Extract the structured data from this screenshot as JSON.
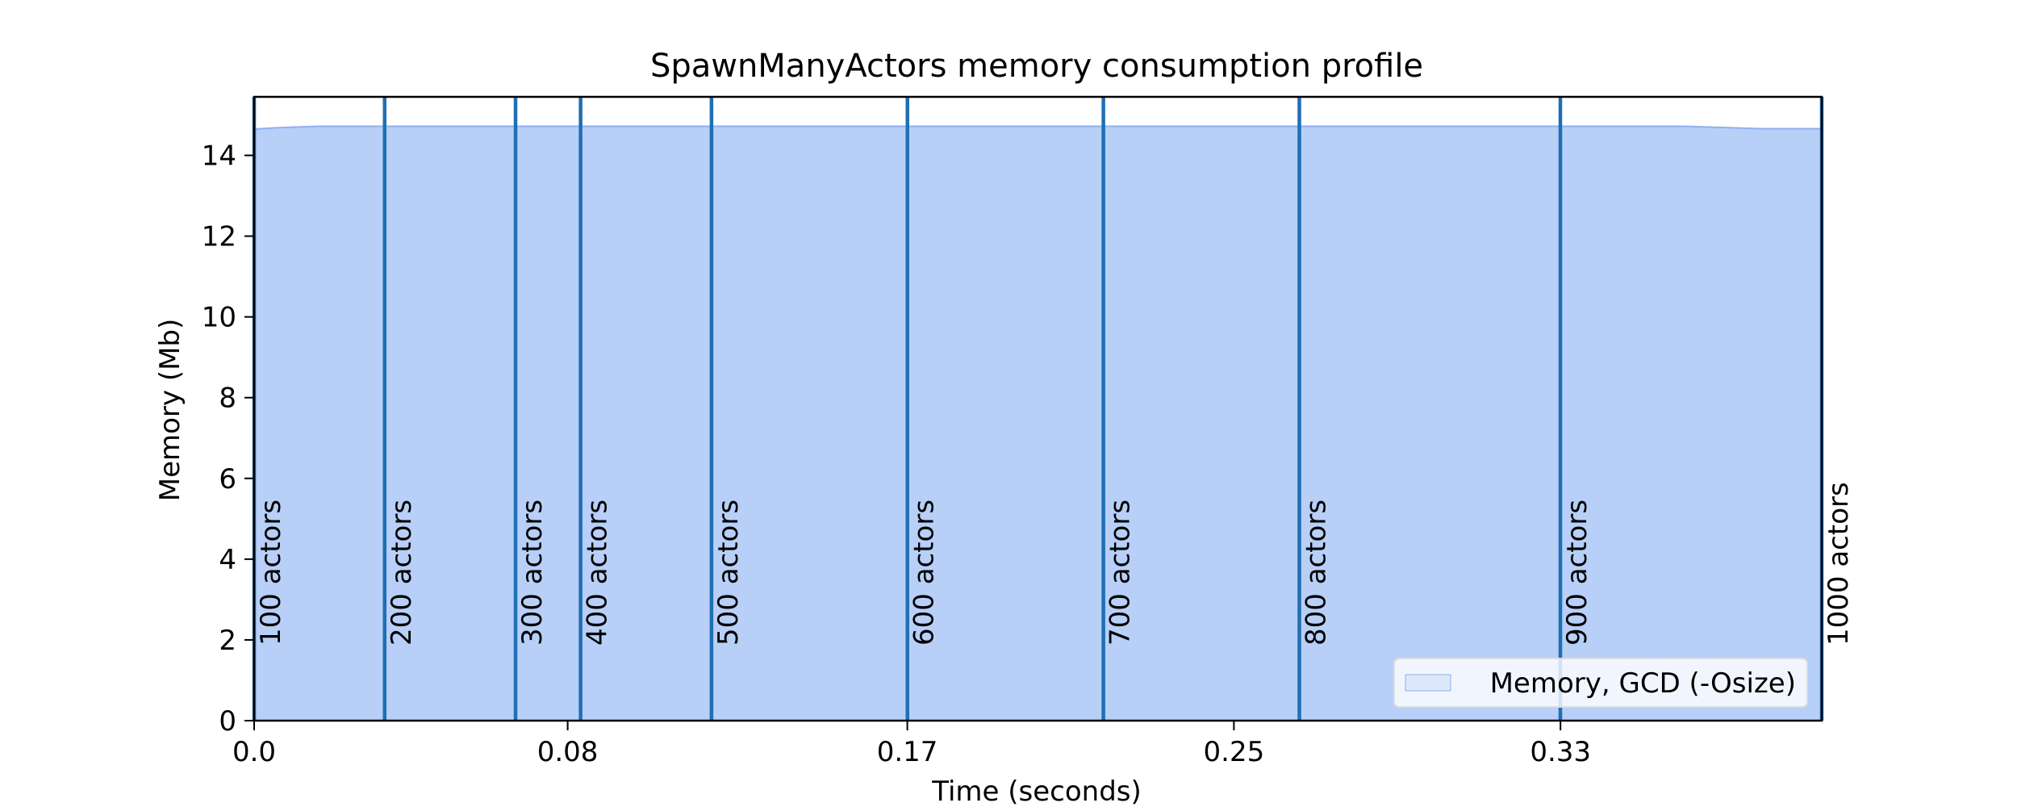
{
  "chart_data": {
    "type": "area",
    "title": "SpawnManyActors memory consumption profile",
    "xlabel": "Time (seconds)",
    "ylabel": "Memory (Mb)",
    "xlim": [
      0,
      0.4
    ],
    "ylim": [
      0,
      15.45
    ],
    "xticks": [
      0,
      0.08,
      0.166667,
      0.25,
      0.333333
    ],
    "xtick_labels": [
      "0.0",
      "0.08",
      "0.17",
      "0.25",
      "0.33"
    ],
    "yticks": [
      0,
      2,
      4,
      6,
      8,
      10,
      12,
      14
    ],
    "ytick_labels": [
      "0",
      "2",
      "4",
      "6",
      "8",
      "10",
      "12",
      "14"
    ],
    "grid": false,
    "legend_position": "lower-right",
    "series": [
      {
        "name": "Memory, GCD (-Osize)",
        "color": "#b8cff7",
        "edge_color": "#8fb0ef",
        "x": [
          0,
          0.005,
          0.016,
          0.05,
          0.1,
          0.15,
          0.2,
          0.25,
          0.3,
          0.35,
          0.365,
          0.385,
          0.4
        ],
        "y": [
          14.65,
          14.68,
          14.72,
          14.72,
          14.72,
          14.72,
          14.72,
          14.72,
          14.72,
          14.72,
          14.72,
          14.66,
          14.66
        ]
      }
    ],
    "markers": {
      "color": "#1f6fb4",
      "x": [
        0,
        0.0333,
        0.0667,
        0.0833,
        0.1167,
        0.1667,
        0.2167,
        0.2667,
        0.3333,
        0.4
      ],
      "labels": [
        "100 actors",
        "200 actors",
        "300 actors",
        "400 actors",
        "500 actors",
        "600 actors",
        "700 actors",
        "800 actors",
        "900 actors",
        "1000 actors"
      ]
    }
  }
}
